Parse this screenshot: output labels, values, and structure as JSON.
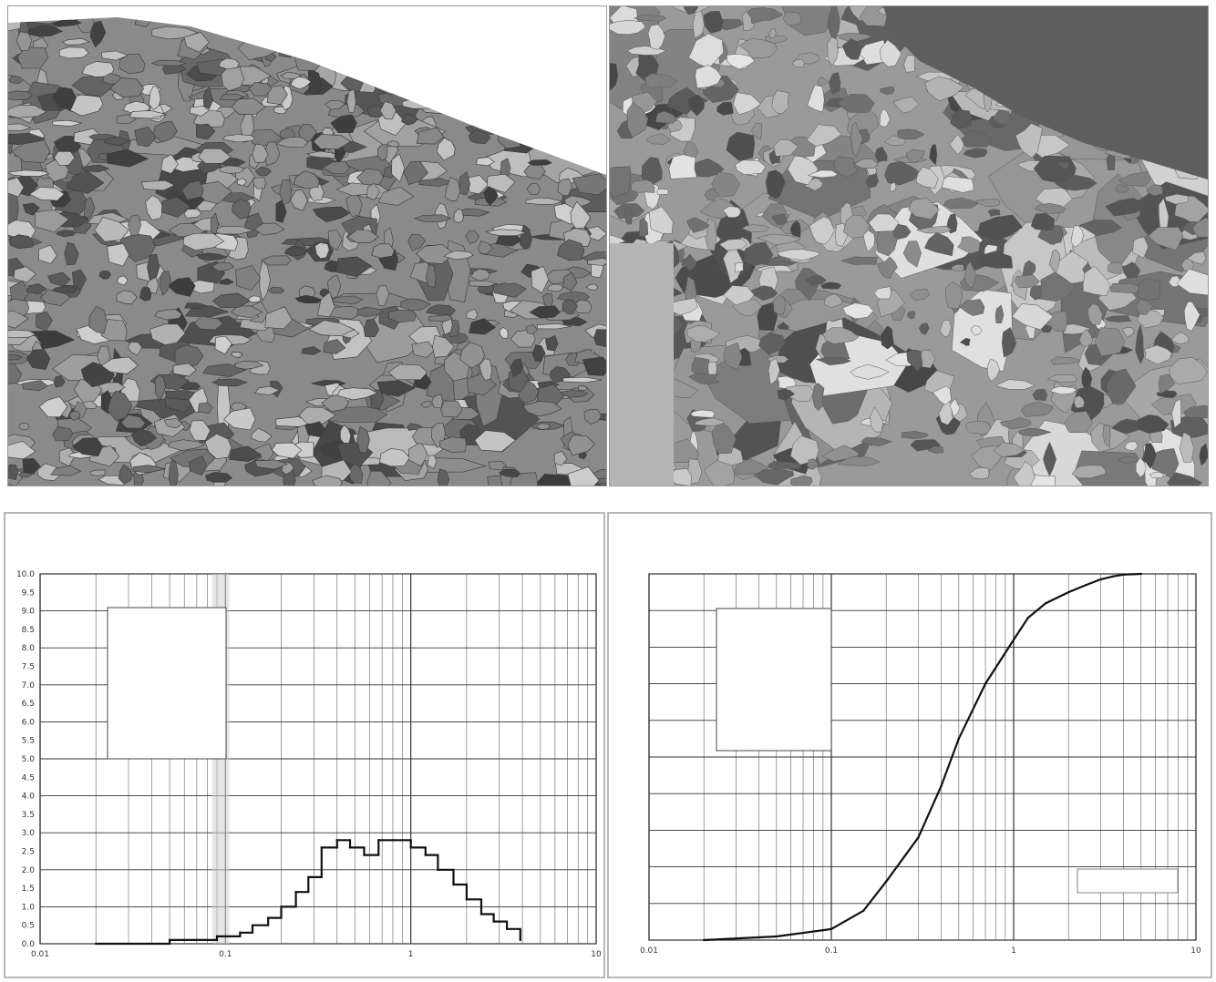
{
  "photos": [
    {
      "name": "microstructure-left",
      "tone": "gray-rubble"
    },
    {
      "name": "microstructure-right",
      "tone": "gray-grains"
    }
  ],
  "chart_data": [
    {
      "type": "line",
      "title": "",
      "xlabel": "",
      "ylabel": "",
      "x_scale": "log",
      "xlim": [
        0.01,
        10
      ],
      "ylim": [
        0,
        10
      ],
      "x_ticks": [
        "0.01",
        "0.1",
        "1",
        "10"
      ],
      "y_ticks": [
        "0.0",
        "0.5",
        "1.0",
        "1.5",
        "2.0",
        "2.5",
        "3.0",
        "3.5",
        "4.0",
        "4.5",
        "5.0",
        "5.5",
        "6.0",
        "6.5",
        "7.0",
        "7.5",
        "8.0",
        "8.5",
        "9.0",
        "9.5",
        "10.0"
      ],
      "legend": {
        "position": "top-left",
        "title": "",
        "entries": []
      },
      "series": [
        {
          "step": true,
          "x": [
            0.02,
            0.05,
            0.09,
            0.12,
            0.14,
            0.17,
            0.2,
            0.24,
            0.28,
            0.33,
            0.4,
            0.47,
            0.56,
            0.67,
            0.8,
            1.0,
            1.2,
            1.4,
            1.7,
            2.0,
            2.4,
            2.8,
            3.3,
            3.9
          ],
          "y": [
            0.0,
            0.1,
            0.2,
            0.3,
            0.5,
            0.7,
            1.0,
            1.4,
            1.8,
            2.6,
            2.8,
            2.6,
            2.4,
            2.8,
            2.8,
            2.6,
            2.4,
            2.0,
            1.6,
            1.2,
            0.8,
            0.6,
            0.4,
            0.1
          ]
        }
      ]
    },
    {
      "type": "line",
      "title": "",
      "xlabel": "",
      "ylabel": "",
      "x_scale": "log",
      "xlim": [
        0.01,
        10
      ],
      "ylim": [
        0,
        100
      ],
      "x_ticks": [
        "0.01",
        "0.1",
        "1",
        "10"
      ],
      "legend": {
        "position": "top-left",
        "title": "",
        "entries": []
      },
      "legend2": {
        "position": "bottom-right",
        "entries": []
      },
      "series": [
        {
          "x": [
            0.02,
            0.05,
            0.1,
            0.15,
            0.2,
            0.3,
            0.4,
            0.5,
            0.7,
            1.0,
            1.2,
            1.5,
            2.0,
            2.5,
            3.0,
            3.5,
            4.0,
            5.0
          ],
          "y": [
            0,
            1,
            3,
            8,
            16,
            28,
            42,
            55,
            70,
            82,
            88,
            92,
            95,
            97,
            98.5,
            99.3,
            99.8,
            100
          ]
        }
      ]
    }
  ]
}
